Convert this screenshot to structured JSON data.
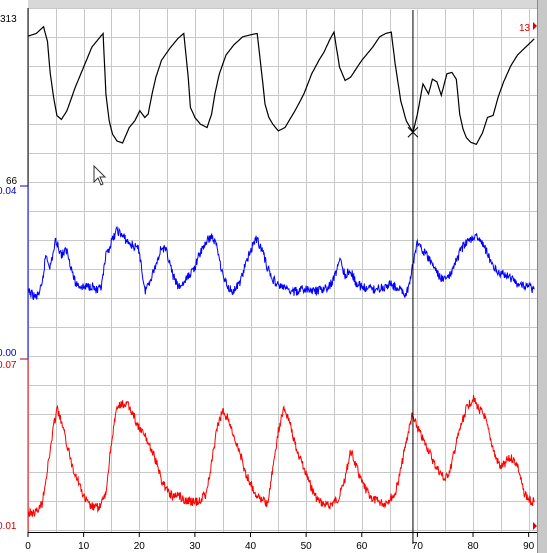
{
  "chart_data": {
    "type": "line",
    "x_ticks": [
      0,
      10,
      20,
      30,
      40,
      50,
      60,
      70,
      80,
      90
    ],
    "xlim": [
      0,
      91.5
    ],
    "cursor_x": 69.2,
    "panels": [
      {
        "top_label": "313",
        "bottom_label": "66",
        "ylim": [
          66,
          313
        ],
        "color": "#000000",
        "corner_marker": "13",
        "corner_marker_color": "#e00000",
        "series": {
          "x": [
            0,
            1.5,
            2.8,
            3.5,
            4,
            4.6,
            5.2,
            6,
            7,
            8.5,
            10,
            11.5,
            13,
            13.5,
            14,
            14.6,
            15.2,
            16,
            17,
            18.2,
            19.2,
            20.1,
            21,
            21.6,
            22.3,
            23,
            24,
            25.5,
            27,
            28,
            28.8,
            29.2,
            30,
            31,
            32.2,
            33,
            33.6,
            34.4,
            35.6,
            37,
            38.6,
            40,
            41.2,
            42,
            42.6,
            43.3,
            44,
            45,
            46.2,
            48,
            49.6,
            51,
            52.3,
            53.2,
            54.2,
            55,
            56,
            57,
            58,
            60,
            62,
            63.2,
            64.3,
            65.3,
            66,
            67,
            68,
            69.2,
            70,
            71,
            72,
            72.7,
            73.5,
            74.3,
            75.3,
            76.2,
            77,
            77.6,
            78.2,
            78.8,
            79.6,
            80.6,
            81.7,
            82.6,
            83.6,
            84.5,
            85.5,
            86.8,
            88,
            89.5,
            91
          ],
          "y": [
            286,
            290,
            300,
            278,
            230,
            195,
            168,
            162,
            175,
            210,
            240,
            270,
            285,
            290,
            200,
            160,
            140,
            130,
            127,
            150,
            160,
            175,
            165,
            170,
            200,
            225,
            250,
            268,
            283,
            290,
            225,
            180,
            165,
            155,
            150,
            170,
            200,
            230,
            258,
            273,
            285,
            288,
            290,
            232,
            185,
            165,
            155,
            145,
            150,
            175,
            200,
            230,
            250,
            262,
            280,
            292,
            240,
            220,
            225,
            250,
            270,
            285,
            290,
            292,
            245,
            190,
            160,
            143,
            170,
            215,
            200,
            222,
            218,
            198,
            230,
            232,
            222,
            170,
            148,
            135,
            128,
            125,
            142,
            165,
            168,
            195,
            218,
            242,
            258,
            270,
            282
          ]
        }
      },
      {
        "top_label": "0.04",
        "bottom_label": "0.00",
        "ylim": [
          0,
          0.04
        ],
        "color": "#0000ff",
        "series": {
          "x": [
            0,
            1.5,
            2.5,
            3.2,
            4,
            5,
            6,
            7,
            8.5,
            10,
            11.5,
            12.5,
            13.2,
            14,
            15,
            16,
            17,
            18,
            19,
            20,
            21,
            22,
            23,
            24,
            25,
            26,
            27,
            28,
            29,
            30,
            31,
            32,
            33,
            34,
            35,
            36,
            37,
            38,
            39,
            40,
            41,
            42,
            43,
            44,
            45,
            46,
            47,
            48,
            50,
            52,
            54,
            55,
            56,
            57,
            58,
            59,
            60,
            62,
            64,
            65,
            66,
            67,
            68,
            69,
            70,
            71,
            72,
            73,
            74,
            75,
            76,
            77,
            78,
            79,
            80,
            81,
            82,
            83,
            84,
            85,
            86,
            88,
            90,
            91
          ],
          "y": [
            0.0155,
            0.014,
            0.0165,
            0.0245,
            0.0215,
            0.028,
            0.0245,
            0.0255,
            0.0175,
            0.0165,
            0.017,
            0.0155,
            0.0165,
            0.024,
            0.0275,
            0.0305,
            0.029,
            0.0275,
            0.0265,
            0.0255,
            0.0155,
            0.0185,
            0.022,
            0.0265,
            0.025,
            0.0195,
            0.0165,
            0.0175,
            0.0195,
            0.0215,
            0.025,
            0.0275,
            0.029,
            0.0265,
            0.0195,
            0.0165,
            0.0155,
            0.0175,
            0.0215,
            0.0255,
            0.0285,
            0.026,
            0.0215,
            0.0185,
            0.017,
            0.0165,
            0.0155,
            0.0155,
            0.016,
            0.0155,
            0.0165,
            0.0185,
            0.0235,
            0.0195,
            0.0205,
            0.0175,
            0.0165,
            0.016,
            0.0165,
            0.0175,
            0.0165,
            0.016,
            0.0145,
            0.0205,
            0.0275,
            0.0255,
            0.0235,
            0.0215,
            0.019,
            0.0185,
            0.0195,
            0.023,
            0.026,
            0.0275,
            0.029,
            0.0285,
            0.0265,
            0.0235,
            0.021,
            0.02,
            0.0195,
            0.0175,
            0.0165,
            0.016
          ]
        }
      },
      {
        "top_label": "0.07",
        "bottom_label": "0.01",
        "ylim": [
          0.01,
          0.07
        ],
        "color": "#ff0000",
        "series": {
          "x": [
            0,
            1.5,
            2.5,
            3.5,
            4.5,
            5.2,
            6,
            7,
            8,
            9,
            10,
            11,
            12,
            13,
            14,
            15,
            16,
            17,
            18,
            19,
            20,
            21,
            22,
            23,
            24,
            25,
            26,
            27,
            28,
            29,
            30,
            31,
            32,
            33,
            34,
            35,
            36,
            37,
            38,
            39,
            40,
            41,
            42,
            43,
            44,
            45,
            46,
            47,
            48,
            49,
            50,
            51,
            52,
            53,
            54,
            55,
            56,
            57,
            58,
            59,
            60,
            62,
            64,
            66,
            67,
            68,
            69,
            70,
            71,
            72,
            73,
            74,
            75,
            76,
            77,
            78,
            79,
            80,
            81,
            82,
            83,
            84,
            85,
            86,
            87,
            88,
            89,
            90,
            91
          ],
          "y": [
            0.016,
            0.0165,
            0.0195,
            0.032,
            0.046,
            0.054,
            0.049,
            0.041,
            0.033,
            0.028,
            0.022,
            0.019,
            0.018,
            0.0185,
            0.023,
            0.042,
            0.054,
            0.0555,
            0.055,
            0.0515,
            0.0465,
            0.044,
            0.04,
            0.035,
            0.028,
            0.0245,
            0.022,
            0.023,
            0.021,
            0.0205,
            0.02,
            0.021,
            0.023,
            0.034,
            0.047,
            0.053,
            0.0505,
            0.043,
            0.039,
            0.031,
            0.027,
            0.023,
            0.021,
            0.019,
            0.032,
            0.046,
            0.054,
            0.05,
            0.041,
            0.0355,
            0.03,
            0.025,
            0.021,
            0.0195,
            0.0185,
            0.02,
            0.022,
            0.029,
            0.0385,
            0.033,
            0.027,
            0.021,
            0.0195,
            0.023,
            0.0315,
            0.042,
            0.051,
            0.047,
            0.0425,
            0.039,
            0.034,
            0.031,
            0.028,
            0.0325,
            0.0415,
            0.049,
            0.055,
            0.0575,
            0.054,
            0.0515,
            0.044,
            0.0365,
            0.0325,
            0.035,
            0.036,
            0.0335,
            0.0245,
            0.021,
            0.02
          ]
        }
      }
    ]
  }
}
